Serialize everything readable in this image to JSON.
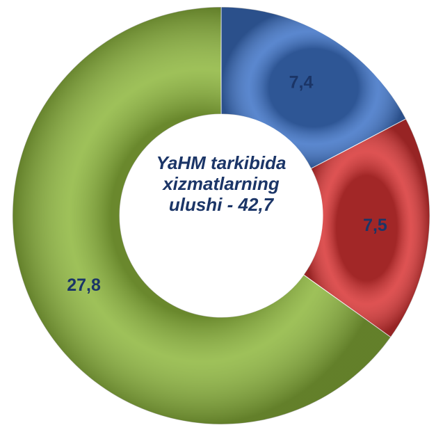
{
  "chart_data": {
    "type": "donut",
    "title": "YaHM tarkibida xizmatlarning ulushi - 42,7",
    "values": [
      7.4,
      7.5,
      27.8
    ],
    "value_labels": [
      "7,4",
      "7,5",
      "27,8"
    ],
    "colors": [
      "#3d72c6",
      "#d83434",
      "#8db63c"
    ]
  }
}
